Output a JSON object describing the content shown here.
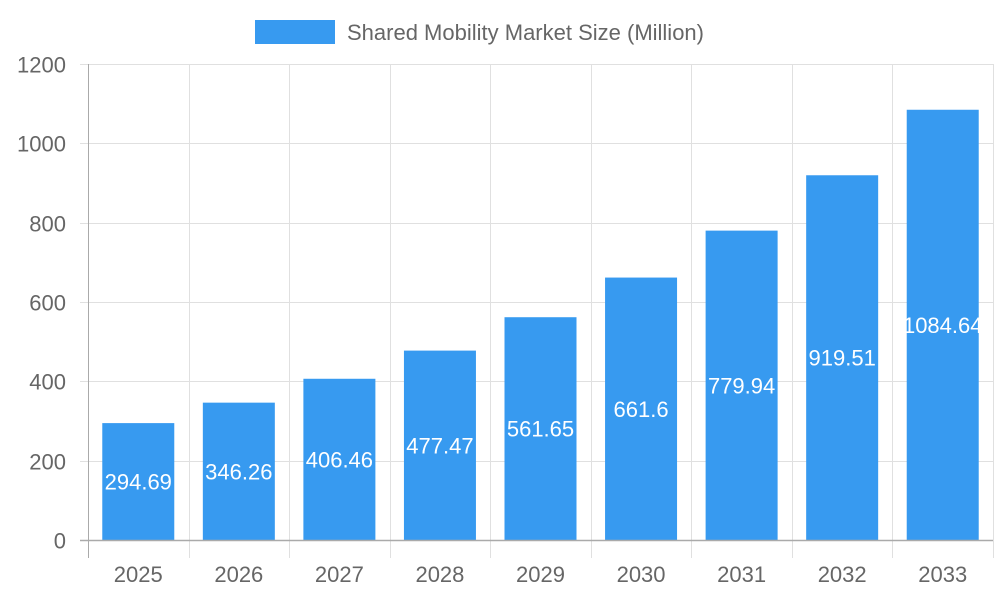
{
  "chart_data": {
    "type": "bar",
    "title": "",
    "legend": {
      "label": "Shared Mobility Market Size (Million)",
      "position": "top"
    },
    "categories": [
      "2025",
      "2026",
      "2027",
      "2028",
      "2029",
      "2030",
      "2031",
      "2032",
      "2033"
    ],
    "series": [
      {
        "name": "Shared Mobility Market Size (Million)",
        "values": [
          294.69,
          346.26,
          406.46,
          477.47,
          561.65,
          661.6,
          779.94,
          919.51,
          1084.64
        ],
        "color": "#379AF0"
      }
    ],
    "data_labels": [
      "294.69",
      "346.26",
      "406.46",
      "477.47",
      "561.65",
      "661.6",
      "779.94",
      "919.51",
      "1084.64"
    ],
    "ylim": [
      0,
      1200
    ],
    "yticks": [
      "0",
      "200",
      "400",
      "600",
      "800",
      "1000",
      "1200"
    ],
    "grid": true,
    "xlabel": "",
    "ylabel": ""
  }
}
